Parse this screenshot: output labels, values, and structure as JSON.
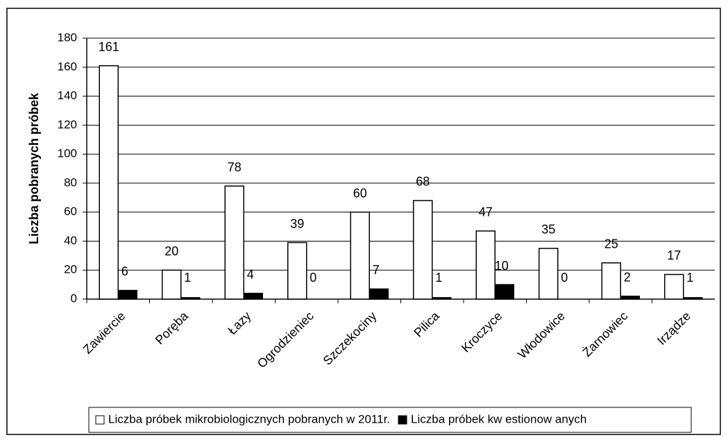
{
  "chart_data": {
    "type": "bar",
    "y_label": "Liczba pobranych próbek",
    "categories": [
      "Zawiercie",
      "Poręba",
      "Łazy",
      "Ogrodzieniec",
      "Szczekociny",
      "Pilica",
      "Kroczyce",
      "Włodowice",
      "Żarnowiec",
      "Irządze"
    ],
    "series": [
      {
        "name": "Liczba próbek mikrobiologicznych pobranych w 2011r.",
        "color": "#ffffff",
        "values": [
          161,
          20,
          78,
          39,
          60,
          68,
          47,
          35,
          25,
          17
        ]
      },
      {
        "name": "Liczba próbek kw estionow anych",
        "color": "#000000",
        "values": [
          6,
          1,
          4,
          0,
          7,
          1,
          10,
          0,
          2,
          1
        ]
      }
    ],
    "ylim": [
      0,
      180
    ],
    "yticks": [
      0,
      20,
      40,
      60,
      80,
      100,
      120,
      140,
      160,
      180
    ],
    "grid": true,
    "legend": "bottom"
  }
}
